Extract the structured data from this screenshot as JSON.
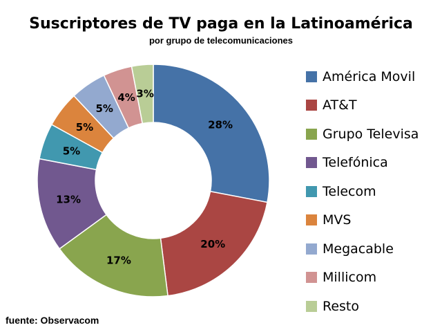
{
  "chart_data": {
    "type": "pie",
    "title": "Suscriptores de TV paga en la Latinoamérica",
    "subtitle": "por grupo de telecomunicaciones",
    "source": "fuente: Observacom",
    "legend_position": "right",
    "slices": [
      {
        "label": "América Movil",
        "value": 28,
        "value_label": "28%",
        "color": "#4572a7"
      },
      {
        "label": "AT&T",
        "value": 20,
        "value_label": "20%",
        "color": "#aa4643"
      },
      {
        "label": "Grupo Televisa",
        "value": 17,
        "value_label": "17%",
        "color": "#89a54e"
      },
      {
        "label": "Telefónica",
        "value": 13,
        "value_label": "13%",
        "color": "#71588f"
      },
      {
        "label": "Telecom",
        "value": 5,
        "value_label": "5%",
        "color": "#4198af"
      },
      {
        "label": "MVS",
        "value": 5,
        "value_label": "5%",
        "color": "#db843d"
      },
      {
        "label": "Megacable",
        "value": 5,
        "value_label": "5%",
        "color": "#93a9cf"
      },
      {
        "label": "Millicom",
        "value": 4,
        "value_label": "4%",
        "color": "#d19392"
      },
      {
        "label": "Resto",
        "value": 3,
        "value_label": "3%",
        "color": "#b9cd96"
      }
    ]
  }
}
